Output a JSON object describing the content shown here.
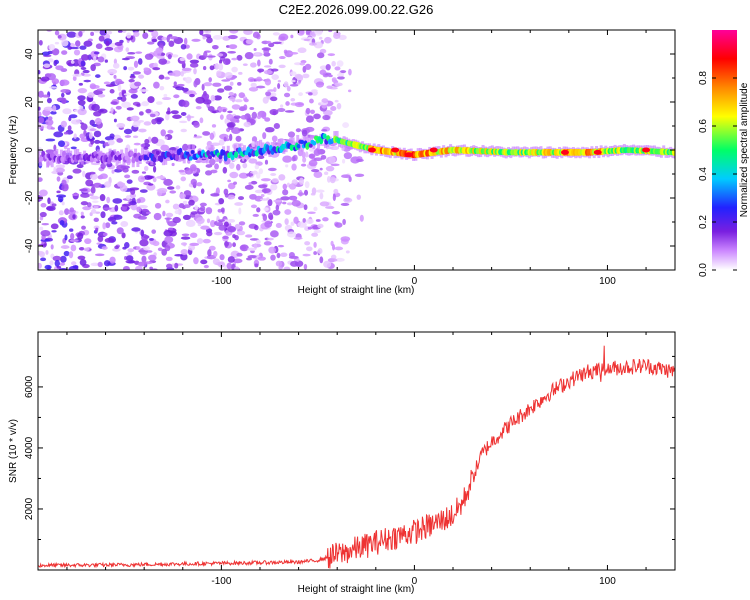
{
  "title": "C2E2.2026.099.00.22.G26",
  "chart_data": [
    {
      "type": "heatmap",
      "name": "spectrogram",
      "xlabel": "Height of straight line (km)",
      "ylabel": "Frequency (Hz)",
      "xlim": [
        -195,
        135
      ],
      "ylim": [
        -50,
        50
      ],
      "xticks": [
        -100,
        0,
        100
      ],
      "yticks": [
        -40,
        -20,
        0,
        20,
        40
      ],
      "colorbar": {
        "label": "Normalized spectral amplitude",
        "range": [
          0.0,
          1.0
        ],
        "ticks": [
          0.0,
          0.2,
          0.4,
          0.6,
          0.8
        ],
        "tick_labels": [
          "0.0",
          "0.2",
          "0.4",
          "0.6",
          "0.8"
        ],
        "colormap": [
          "#ffffff",
          "#cc88ff",
          "#7a1fe0",
          "#2222ff",
          "#00ccff",
          "#00ff66",
          "#ffff00",
          "#ff8800",
          "#ff0000",
          "#ff0099"
        ]
      },
      "features": {
        "noise_region_x": [
          -195,
          -50
        ],
        "signal_ridge": [
          {
            "x": -195,
            "freq": -3,
            "amp": 0.12
          },
          {
            "x": -150,
            "freq": -3,
            "amp": 0.15
          },
          {
            "x": -120,
            "freq": -2,
            "amp": 0.3
          },
          {
            "x": -100,
            "freq": -2,
            "amp": 0.4
          },
          {
            "x": -80,
            "freq": 0,
            "amp": 0.35
          },
          {
            "x": -60,
            "freq": 2,
            "amp": 0.4
          },
          {
            "x": -45,
            "freq": 5,
            "amp": 0.5
          },
          {
            "x": -35,
            "freq": 3,
            "amp": 0.55
          },
          {
            "x": -20,
            "freq": 0,
            "amp": 0.75
          },
          {
            "x": 0,
            "freq": -2,
            "amp": 0.8
          },
          {
            "x": 20,
            "freq": 0,
            "amp": 0.7
          },
          {
            "x": 50,
            "freq": -1,
            "amp": 0.6
          },
          {
            "x": 90,
            "freq": -1,
            "amp": 0.75
          },
          {
            "x": 110,
            "freq": 0,
            "amp": 0.6
          },
          {
            "x": 135,
            "freq": -1,
            "amp": 0.6
          }
        ]
      }
    },
    {
      "type": "line",
      "name": "snr",
      "xlabel": "Height of straight line (km)",
      "ylabel": "SNR (10 * v/v)",
      "xlim": [
        -195,
        135
      ],
      "ylim": [
        0,
        7800
      ],
      "xticks": [
        -100,
        0,
        100
      ],
      "yticks": [
        2000,
        4000,
        6000
      ],
      "color": "#ee3333",
      "series": [
        {
          "name": "SNR",
          "x": [
            -195,
            -150,
            -100,
            -60,
            -50,
            -40,
            -30,
            -20,
            -10,
            0,
            10,
            20,
            25,
            30,
            35,
            40,
            50,
            60,
            70,
            80,
            90,
            100,
            110,
            120,
            135
          ],
          "values": [
            150,
            170,
            220,
            260,
            320,
            500,
            700,
            900,
            1100,
            1250,
            1500,
            1800,
            2200,
            3000,
            3800,
            4200,
            4800,
            5300,
            5800,
            6200,
            6500,
            6600,
            6650,
            6700,
            6500
          ]
        }
      ]
    }
  ]
}
